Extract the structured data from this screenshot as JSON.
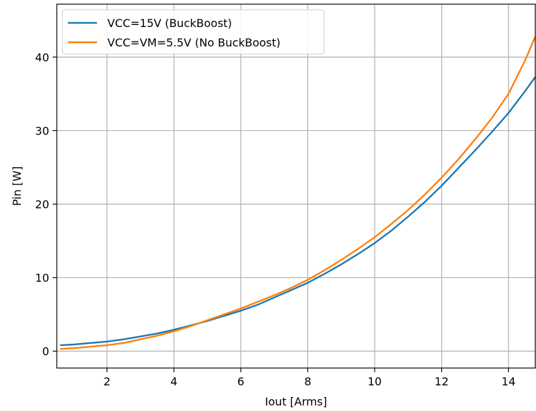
{
  "chart_data": {
    "type": "line",
    "title": "",
    "xlabel": "Iout [Arms]",
    "ylabel": "Pin [W]",
    "xlim": [
      0.5,
      14.8
    ],
    "ylim": [
      -2.3,
      47.2
    ],
    "grid": true,
    "legend_position": "top-left",
    "xticks": [
      2,
      4,
      6,
      8,
      10,
      12,
      14
    ],
    "yticks": [
      0,
      10,
      20,
      30,
      40
    ],
    "series": [
      {
        "name": "VCC=15V (BuckBoost)",
        "color": "#1f77b4",
        "x": [
          0.6,
          1.0,
          1.5,
          2.0,
          2.5,
          3.0,
          3.5,
          4.0,
          4.5,
          5.0,
          5.5,
          6.0,
          6.5,
          7.0,
          7.5,
          8.0,
          8.5,
          9.0,
          9.5,
          10.0,
          10.5,
          11.0,
          11.5,
          12.0,
          12.5,
          13.0,
          13.5,
          14.0,
          14.5,
          14.8
        ],
        "y": [
          0.8,
          0.9,
          1.1,
          1.3,
          1.6,
          2.0,
          2.4,
          2.9,
          3.5,
          4.1,
          4.8,
          5.5,
          6.3,
          7.3,
          8.3,
          9.3,
          10.5,
          11.8,
          13.2,
          14.7,
          16.4,
          18.3,
          20.3,
          22.5,
          24.9,
          27.3,
          29.8,
          32.4,
          35.4,
          37.3
        ]
      },
      {
        "name": "VCC=VM=5.5V (No BuckBoost)",
        "color": "#ff7f0e",
        "x": [
          0.6,
          1.0,
          1.5,
          2.0,
          2.5,
          3.0,
          3.5,
          4.0,
          4.5,
          5.0,
          5.5,
          6.0,
          6.5,
          7.0,
          7.5,
          8.0,
          8.5,
          9.0,
          9.5,
          10.0,
          10.5,
          11.0,
          11.5,
          12.0,
          12.5,
          13.0,
          13.5,
          14.0,
          14.5,
          14.8
        ],
        "y": [
          0.3,
          0.4,
          0.6,
          0.8,
          1.1,
          1.6,
          2.1,
          2.7,
          3.4,
          4.2,
          5.0,
          5.8,
          6.7,
          7.6,
          8.6,
          9.7,
          11.0,
          12.4,
          13.9,
          15.5,
          17.3,
          19.2,
          21.3,
          23.6,
          26.1,
          28.8,
          31.7,
          35.0,
          39.6,
          42.8
        ]
      }
    ]
  }
}
